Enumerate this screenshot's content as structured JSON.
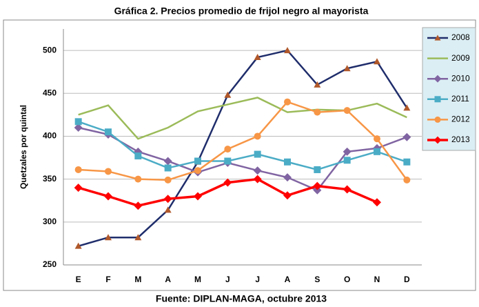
{
  "chart_data": {
    "type": "line",
    "title": "Gráfica 2.  Precios promedio de frijol negro al mayorista",
    "y_label": "Quetzales por quintal",
    "source": "Fuente: DIPLAN-MAGA, octubre 2013",
    "categories": [
      "E",
      "F",
      "M",
      "A",
      "M",
      "J",
      "J",
      "A",
      "S",
      "O",
      "N",
      "D"
    ],
    "ylim": [
      250,
      525
    ],
    "yticks": [
      250,
      300,
      350,
      400,
      450,
      500
    ],
    "grid": true,
    "legend": "right",
    "series": [
      {
        "name": "2008",
        "color": "#1f2d6b",
        "marker": "triangle",
        "marker_color": "#b0582a",
        "values": [
          272,
          282,
          282,
          314,
          370,
          448,
          492,
          500,
          460,
          479,
          487,
          433
        ]
      },
      {
        "name": "2009",
        "color": "#9bbb59",
        "marker": "none",
        "values": [
          425,
          436,
          397,
          410,
          429,
          437,
          445,
          428,
          431,
          430,
          438,
          422
        ]
      },
      {
        "name": "2010",
        "color": "#8064a2",
        "marker": "diamond",
        "values": [
          410,
          402,
          382,
          371,
          358,
          369,
          360,
          352,
          337,
          382,
          386,
          399
        ]
      },
      {
        "name": "2011",
        "color": "#4bacc6",
        "marker": "square",
        "values": [
          417,
          405,
          377,
          363,
          371,
          371,
          379,
          370,
          361,
          372,
          382,
          370
        ]
      },
      {
        "name": "2012",
        "color": "#f79646",
        "marker": "circle",
        "values": [
          361,
          359,
          350,
          349,
          360,
          385,
          400,
          440,
          428,
          430,
          397,
          349
        ]
      },
      {
        "name": "2013",
        "color": "#ff0000",
        "marker": "diamond",
        "values": [
          340,
          330,
          319,
          327,
          330,
          346,
          350,
          331,
          342,
          338,
          323,
          null
        ]
      }
    ]
  }
}
